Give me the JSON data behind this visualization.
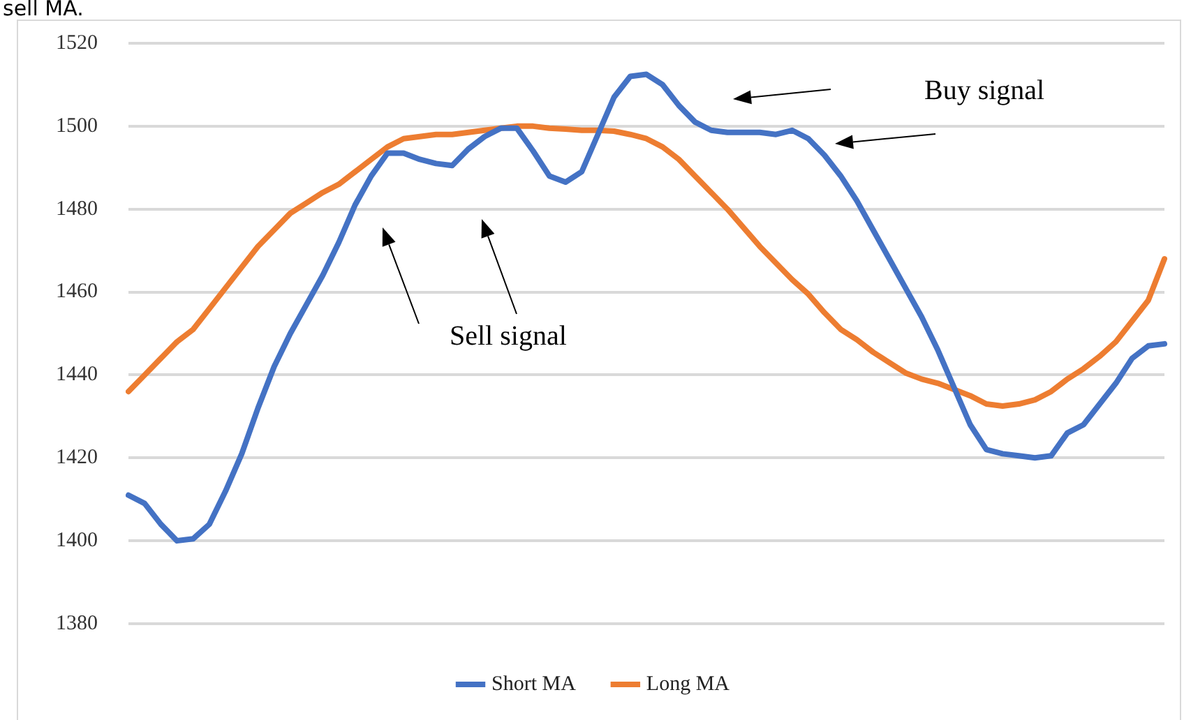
{
  "chart_data": {
    "type": "line",
    "annotations": [
      "sell MA.",
      "Sell signal",
      "Buy signal"
    ],
    "categories": [
      null,
      null,
      null,
      null,
      null,
      null,
      null,
      null,
      null,
      null,
      null,
      null,
      null,
      null,
      null,
      null,
      null,
      null,
      null,
      null,
      null,
      null,
      null,
      null,
      null,
      null,
      null,
      null,
      null,
      null,
      null,
      null,
      null,
      null,
      null,
      null,
      null,
      null,
      null,
      null,
      null,
      null,
      null,
      null,
      null,
      null,
      null,
      null,
      null,
      null,
      null,
      null,
      null,
      null,
      null,
      null,
      null,
      null,
      null,
      null,
      null,
      null,
      null,
      null,
      null
    ],
    "series": [
      {
        "name": "Short MA",
        "color": "#4472c4",
        "values": [
          1411,
          1409,
          1404,
          1400,
          1400.5,
          1404,
          1412,
          1421,
          1432,
          1442,
          1450,
          1457,
          1464,
          1472,
          1481,
          1488,
          1493.5,
          1493.5,
          1492,
          1491,
          1490.5,
          1494.5,
          1497.5,
          1499.5,
          1499.5,
          1494,
          1488,
          1486.5,
          1489,
          1498,
          1507,
          1512,
          1512.5,
          1510,
          1505,
          1501,
          1499,
          1498.5,
          1498.5,
          1498.5,
          1498,
          1499,
          1497,
          1493,
          1488,
          1482,
          1475,
          1468,
          1461,
          1454,
          1446,
          1437,
          1428,
          1422,
          1421,
          1420.5,
          1420,
          1420.5,
          1426,
          1428,
          1433,
          1438,
          1444,
          1447,
          1447.5
        ]
      },
      {
        "name": "Long MA",
        "color": "#ed7d31",
        "values": [
          1436,
          1440,
          1444,
          1448,
          1451,
          1456,
          1461,
          1466,
          1471,
          1475,
          1479,
          1481.5,
          1484,
          1486,
          1489,
          1492,
          1495,
          1497,
          1497.5,
          1498,
          1498,
          1498.5,
          1499,
          1499.5,
          1500,
          1500,
          1499.5,
          1499.3,
          1499,
          1499,
          1498.8,
          1498,
          1497,
          1495,
          1492,
          1488,
          1484,
          1480,
          1475.5,
          1471,
          1467,
          1463,
          1459.5,
          1455,
          1451,
          1448.5,
          1445.5,
          1443,
          1440.5,
          1439,
          1438,
          1436.5,
          1435,
          1433,
          1432.5,
          1433,
          1434,
          1436,
          1439,
          1441.5,
          1444.5,
          1448,
          1453,
          1458,
          1468
        ]
      }
    ],
    "ylim": [
      1380,
      1520
    ],
    "yticks": [
      1380,
      1400,
      1420,
      1440,
      1460,
      1480,
      1500,
      1520
    ],
    "grid": "y",
    "legend": "bottom",
    "marker": "none",
    "line_style": "solid"
  }
}
